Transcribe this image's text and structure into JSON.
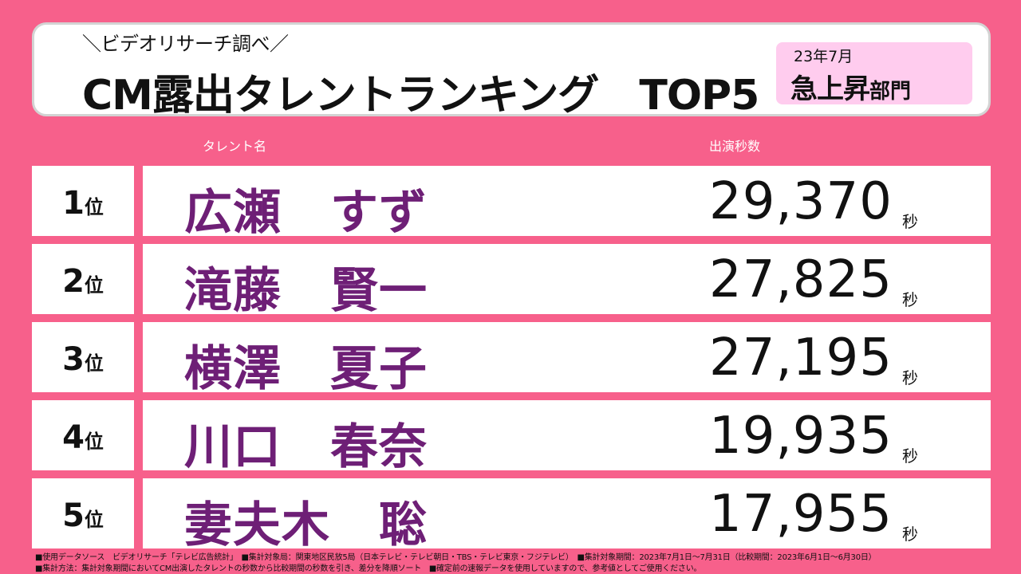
{
  "header": {
    "subtitle": "＼ビデオリサーチ調べ／",
    "title": "CM露出タレントランキング　TOP5",
    "category_date": "23年7月",
    "category_main": "急上昇",
    "category_sub": "部門"
  },
  "columns": {
    "name": "タレント名",
    "seconds": "出演秒数"
  },
  "rank_suffix": "位",
  "seconds_unit": "秒",
  "rows": [
    {
      "rank": "1",
      "name": "広瀬　すず",
      "seconds": "29,370"
    },
    {
      "rank": "2",
      "name": "滝藤　賢一",
      "seconds": "27,825"
    },
    {
      "rank": "3",
      "name": "横澤　夏子",
      "seconds": "27,195"
    },
    {
      "rank": "4",
      "name": "川口　春奈",
      "seconds": "19,935"
    },
    {
      "rank": "5",
      "name": "妻夫木　聡",
      "seconds": "17,955"
    }
  ],
  "footnotes": [
    "■使用データソース　ビデオリサーチ「テレビ広告統計」　■集計対象局：関東地区民放5局（日本テレビ・テレビ朝日・TBS・テレビ東京・フジテレビ）　■集計対象期間：2023年7月1日～7月31日（比較期間：2023年6月1日～6月30日）",
    "■集計方法：集計対象期間においてCM出演したタレントの秒数から比較期間の秒数を引き、差分を降順ソート　■確定前の速報データを使用していますので、参考値としてご使用ください。"
  ],
  "colors": {
    "background": "#f7608b",
    "name_text": "#6e1f76",
    "category_bg": "#ffccee"
  }
}
